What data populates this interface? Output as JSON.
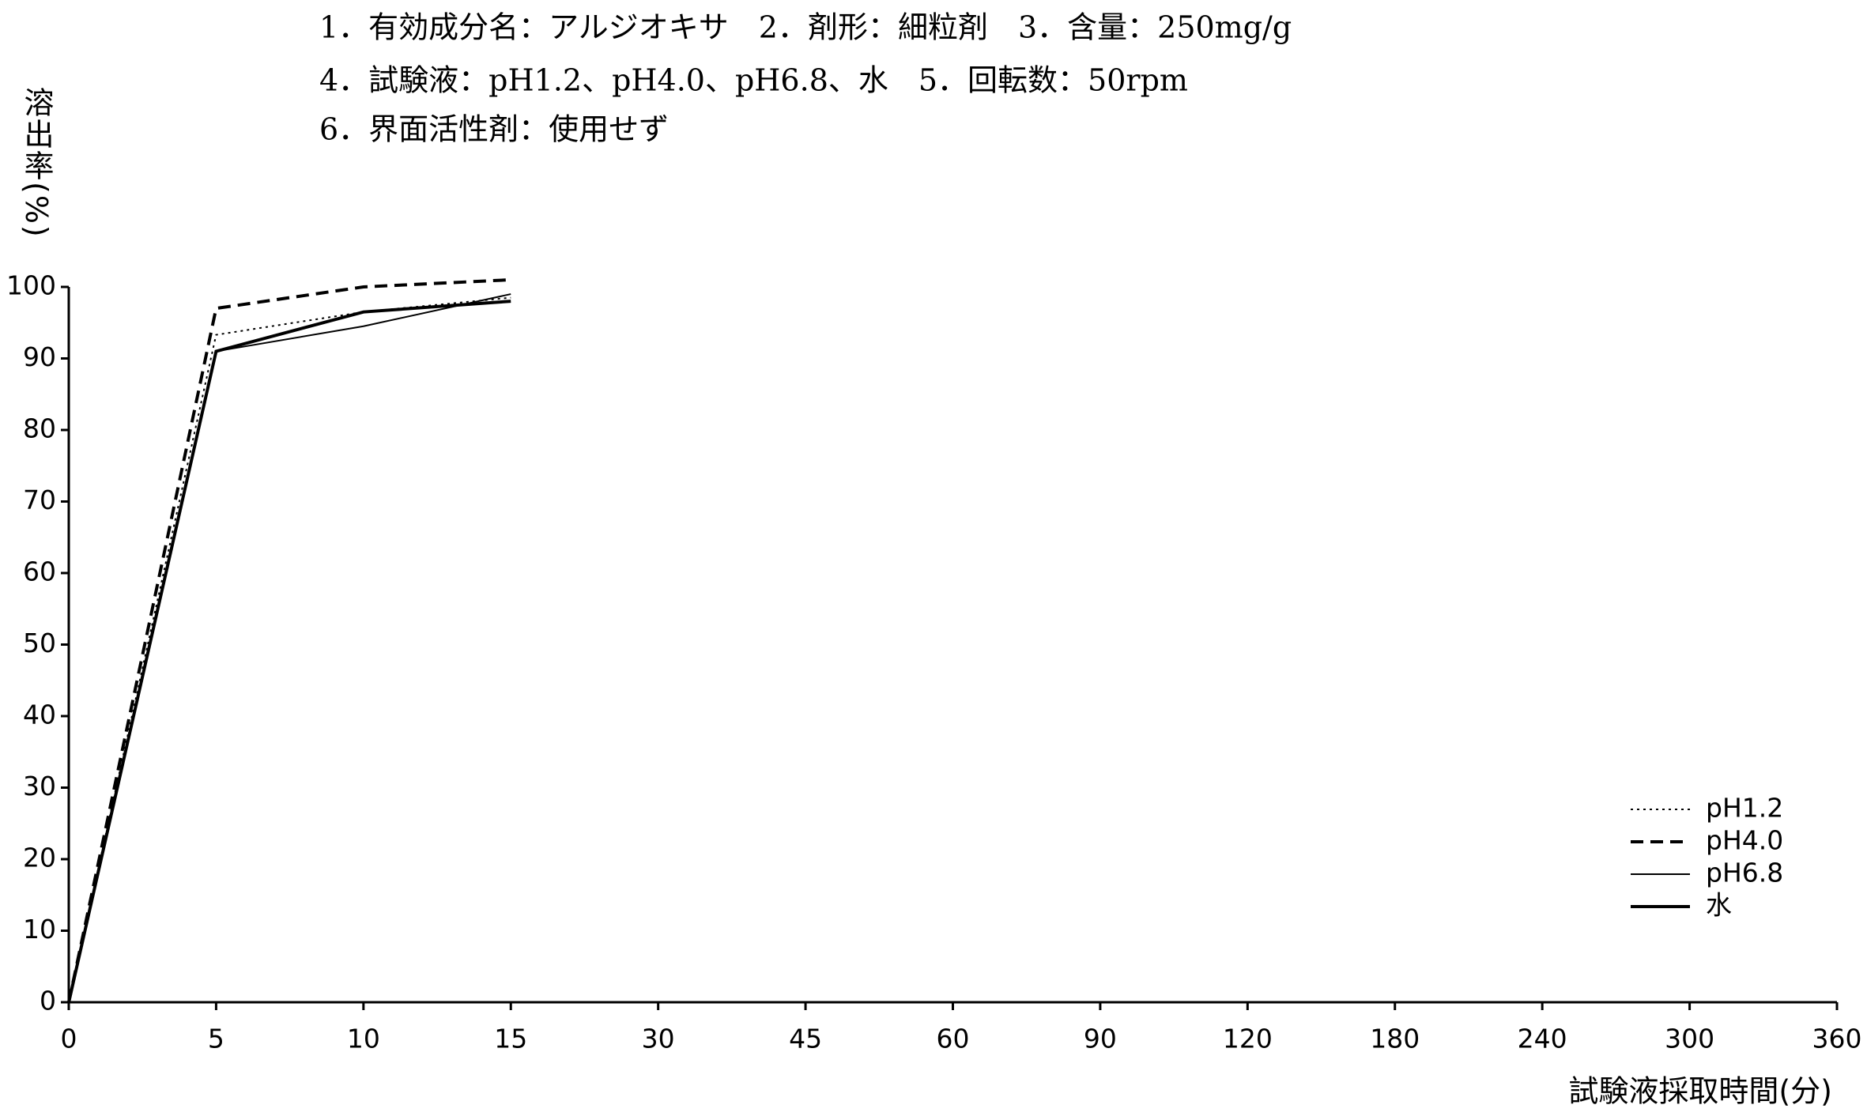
{
  "chart_data": {
    "type": "line",
    "title_lines": [
      "1．有効成分名：アルジオキサ　2．剤形：細粒剤　3．含量：250mg/g",
      "4．試験液：pH1.2、pH4.0、pH6.8、水　5．回転数：50rpm",
      "6．界面活性剤：使用せず"
    ],
    "y_label": "溶出率(%)",
    "x_label": "試験液採取時間(分)",
    "categories": [
      "0",
      "5",
      "10",
      "15",
      "30",
      "45",
      "60",
      "90",
      "120",
      "180",
      "240",
      "300",
      "360"
    ],
    "series": [
      {
        "name": "pH1.2",
        "color": "#000000",
        "dash": "dotted",
        "width": 2,
        "values": [
          0,
          93.3,
          96.5,
          98.5,
          null,
          null,
          null,
          null,
          null,
          null,
          null,
          null,
          null
        ]
      },
      {
        "name": "pH4.0",
        "color": "#000000",
        "dash": "dashed",
        "width": 4,
        "values": [
          0,
          97,
          100,
          101,
          null,
          null,
          null,
          null,
          null,
          null,
          null,
          null,
          null
        ]
      },
      {
        "name": "pH6.8",
        "color": "#000000",
        "dash": "solid",
        "width": 2,
        "values": [
          0,
          91,
          94.5,
          99,
          null,
          null,
          null,
          null,
          null,
          null,
          null,
          null,
          null
        ]
      },
      {
        "name": "水",
        "color": "#000000",
        "dash": "solid",
        "width": 4,
        "values": [
          0,
          91,
          96.5,
          98,
          null,
          null,
          null,
          null,
          null,
          null,
          null,
          null,
          null
        ]
      }
    ],
    "ylim": [
      0,
      100
    ],
    "yticks": [
      0,
      10,
      20,
      30,
      40,
      50,
      60,
      70,
      80,
      90,
      100
    ],
    "grid": false,
    "legend": "lower-right"
  }
}
